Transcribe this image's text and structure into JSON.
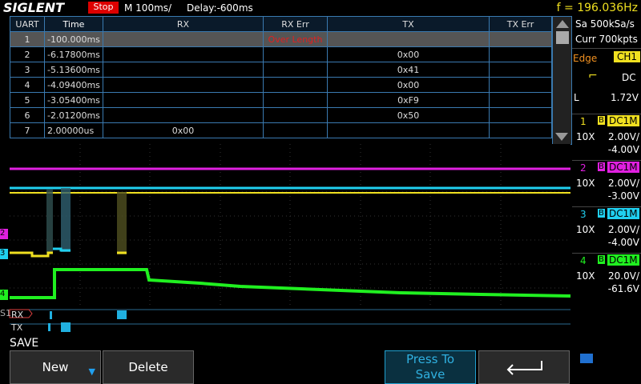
{
  "header": {
    "brand": "SIGLENT",
    "status": "Stop",
    "timebase": "M 100ms/",
    "delay": "Delay:-600ms",
    "frequency": "f = 196.036Hz"
  },
  "table": {
    "columns": [
      "UART",
      "Time",
      "RX",
      "RX Err",
      "TX",
      "TX Err"
    ],
    "rows": [
      {
        "index": "1",
        "time": "-100.000ms",
        "rx_err": "Over Length"
      },
      {
        "index": "2",
        "time": "-6.17800ms",
        "tx": "0x00"
      },
      {
        "index": "3",
        "time": "-5.13600ms",
        "tx": "0x41"
      },
      {
        "index": "4",
        "time": "-4.09400ms",
        "tx": "0x00"
      },
      {
        "index": "5",
        "time": "-3.05400ms",
        "tx": "0xF9"
      },
      {
        "index": "6",
        "time": "-2.01200ms",
        "tx": "0x50"
      },
      {
        "index": "7",
        "time": "2.00000us",
        "rx": "0x00"
      }
    ]
  },
  "sidebar": {
    "sample_rate": "Sa 500kSa/s",
    "memory": "Curr 700kpts",
    "trigger": {
      "mode": "Edge",
      "source": "CH1",
      "coupling": "DC",
      "level_label": "L",
      "level": "1.72V"
    },
    "channels": [
      {
        "number": "1",
        "bandwidth": "B",
        "coupling": "DC1M",
        "probe": "10X",
        "scale": "2.00V/",
        "offset": "-4.00V",
        "color": "#f0e020"
      },
      {
        "number": "2",
        "bandwidth": "B",
        "coupling": "DC1M",
        "probe": "10X",
        "scale": "2.00V/",
        "offset": "-3.00V",
        "color": "#e020e0"
      },
      {
        "number": "3",
        "bandwidth": "B",
        "coupling": "DC1M",
        "probe": "10X",
        "scale": "2.00V/",
        "offset": "-4.00V",
        "color": "#20d0f0"
      },
      {
        "number": "4",
        "bandwidth": "B",
        "coupling": "DC1M",
        "probe": "10X",
        "scale": "20.0V/",
        "offset": "-61.6V",
        "color": "#20f020"
      }
    ]
  },
  "decode": {
    "bus": "S1",
    "rx": "RX",
    "tx": "TX"
  },
  "menu": {
    "title": "SAVE",
    "buttons": [
      "New",
      "Delete",
      "Press To Save"
    ]
  }
}
